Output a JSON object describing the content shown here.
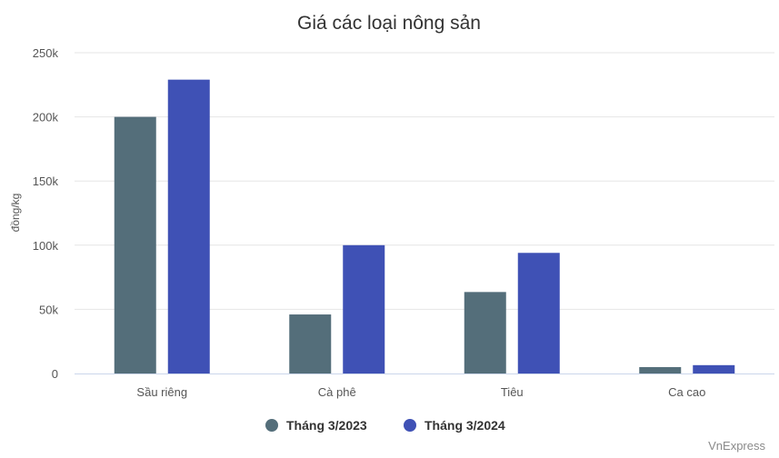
{
  "chart_data": {
    "type": "bar",
    "title": "Giá các loại nông sản",
    "xlabel": "",
    "ylabel": "đồng/kg",
    "categories": [
      "Sầu riêng",
      "Cà phê",
      "Tiêu",
      "Ca cao"
    ],
    "series": [
      {
        "name": "Tháng 3/2023",
        "color": "#546e7a",
        "values": [
          200000,
          46000,
          63500,
          5000
        ]
      },
      {
        "name": "Tháng 3/2024",
        "color": "#3f51b5",
        "values": [
          229000,
          100000,
          94000,
          6500
        ]
      }
    ],
    "ylim": [
      0,
      250000
    ],
    "yticks": [
      0,
      50000,
      100000,
      150000,
      200000,
      250000
    ],
    "ytick_labels": [
      "0",
      "50k",
      "100k",
      "150k",
      "200k",
      "250k"
    ],
    "grid": true,
    "legend_position": "bottom-center",
    "credit": "VnExpress"
  }
}
